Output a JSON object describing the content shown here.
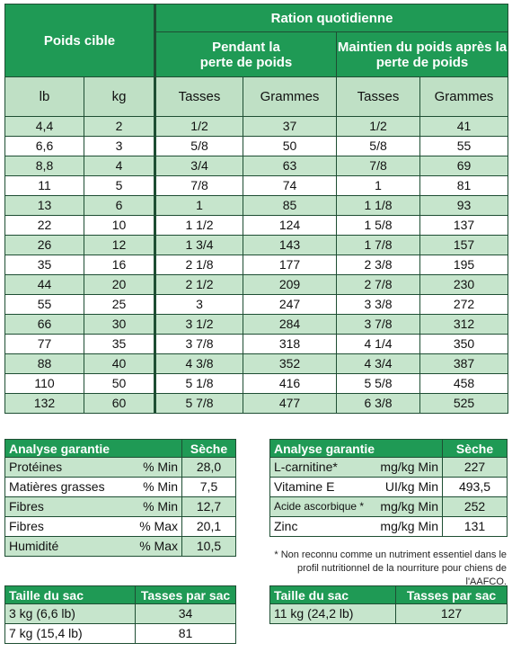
{
  "main_table": {
    "header": {
      "target_weight": "Poids cible",
      "daily_ration": "Ration quotidienne",
      "weight_loss": "Pendant la\nperte de poids",
      "maintenance": "Maintien du poids après la perte de poids"
    },
    "subheader": [
      "lb",
      "kg",
      "Tasses",
      "Grammes",
      "Tasses",
      "Grammes"
    ],
    "rows": [
      [
        "4,4",
        "2",
        "1/2",
        "37",
        "1/2",
        "41"
      ],
      [
        "6,6",
        "3",
        "5/8",
        "50",
        "5/8",
        "55"
      ],
      [
        "8,8",
        "4",
        "3/4",
        "63",
        "7/8",
        "69"
      ],
      [
        "11",
        "5",
        "7/8",
        "74",
        "1",
        "81"
      ],
      [
        "13",
        "6",
        "1",
        "85",
        "1 1/8",
        "93"
      ],
      [
        "22",
        "10",
        "1 1/2",
        "124",
        "1 5/8",
        "137"
      ],
      [
        "26",
        "12",
        "1 3/4",
        "143",
        "1 7/8",
        "157"
      ],
      [
        "35",
        "16",
        "2 1/8",
        "177",
        "2 3/8",
        "195"
      ],
      [
        "44",
        "20",
        "2 1/2",
        "209",
        "2 7/8",
        "230"
      ],
      [
        "55",
        "25",
        "3",
        "247",
        "3 3/8",
        "272"
      ],
      [
        "66",
        "30",
        "3 1/2",
        "284",
        "3 7/8",
        "312"
      ],
      [
        "77",
        "35",
        "3 7/8",
        "318",
        "4 1/4",
        "350"
      ],
      [
        "88",
        "40",
        "4 3/8",
        "352",
        "4 3/4",
        "387"
      ],
      [
        "110",
        "50",
        "5 1/8",
        "416",
        "5 5/8",
        "458"
      ],
      [
        "132",
        "60",
        "5 7/8",
        "477",
        "6 3/8",
        "525"
      ]
    ]
  },
  "analysis_left": {
    "title": "Analyse garantie",
    "col": "Sèche",
    "rows": [
      {
        "name": "Protéines",
        "unit": "% Min",
        "value": "28,0"
      },
      {
        "name": "Matières grasses",
        "unit": "% Min",
        "value": "7,5"
      },
      {
        "name": "Fibres",
        "unit": "% Min",
        "value": "12,7"
      },
      {
        "name": "Fibres",
        "unit": "% Max",
        "value": "20,1"
      },
      {
        "name": "Humidité",
        "unit": "% Max",
        "value": "10,5"
      }
    ]
  },
  "analysis_right": {
    "title": "Analyse garantie",
    "col": "Sèche",
    "rows": [
      {
        "name": "L-carnitine*",
        "unit": "mg/kg Min",
        "value": "227"
      },
      {
        "name": "Vitamine E",
        "unit": "UI/kg Min",
        "value": "493,5"
      },
      {
        "name": "Acide ascorbique *",
        "unit": "mg/kg Min",
        "value": "252"
      },
      {
        "name": "Zinc",
        "unit": "mg/kg Min",
        "value": "131"
      }
    ]
  },
  "footnote": "* Non reconnu comme un nutriment essentiel dans le profil nutritionnel de la nourriture pour chiens de l'AAFCO.",
  "bag_left": {
    "title": "Taille du sac",
    "col": "Tasses par sac",
    "rows": [
      {
        "size": "3 kg (6,6 lb)",
        "cups": "34"
      },
      {
        "size": "7 kg (15,4 lb)",
        "cups": "81"
      }
    ]
  },
  "bag_right": {
    "title": "Taille du sac",
    "col": "Tasses par sac",
    "rows": [
      {
        "size": "11 kg (24,2 lb)",
        "cups": "127"
      }
    ]
  }
}
